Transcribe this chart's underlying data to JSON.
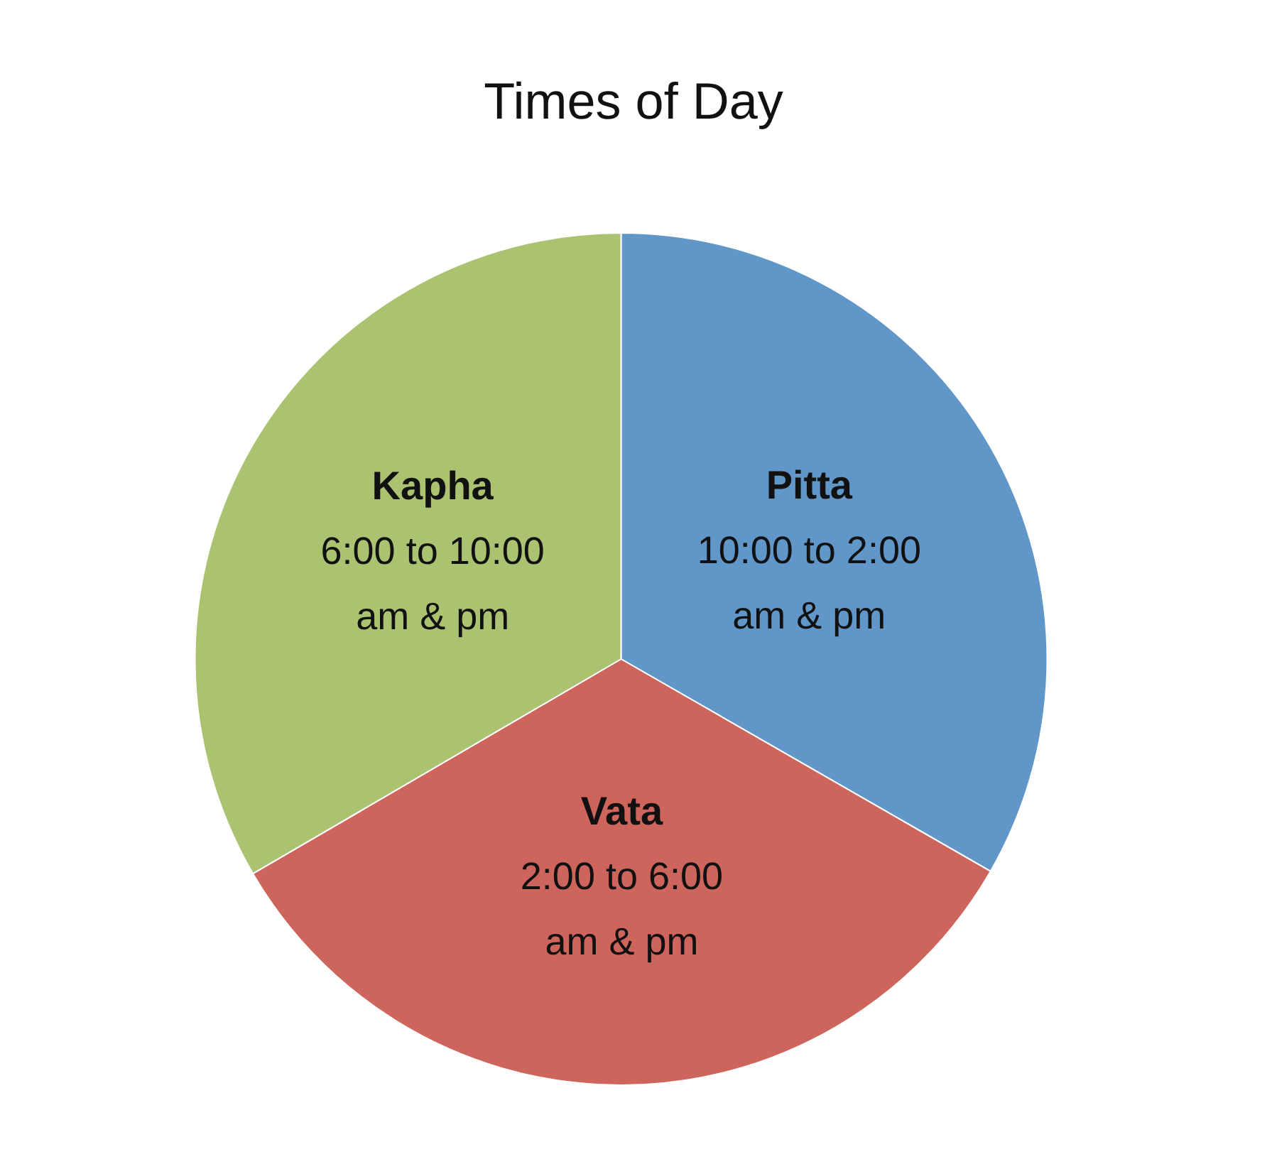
{
  "chart_data": {
    "type": "pie",
    "title": "Times of Day",
    "categories": [
      "Pitta",
      "Vata",
      "Kapha"
    ],
    "values": [
      33.3,
      33.3,
      33.4
    ],
    "colors": [
      "#6096c8",
      "#cd655d",
      "#abc271"
    ],
    "annotations": [
      "10:00 to 2:00\nam & pm",
      "2:00 to 6:00\nam & pm",
      "6:00 to 10:00\nam & pm"
    ],
    "legend": false
  }
}
